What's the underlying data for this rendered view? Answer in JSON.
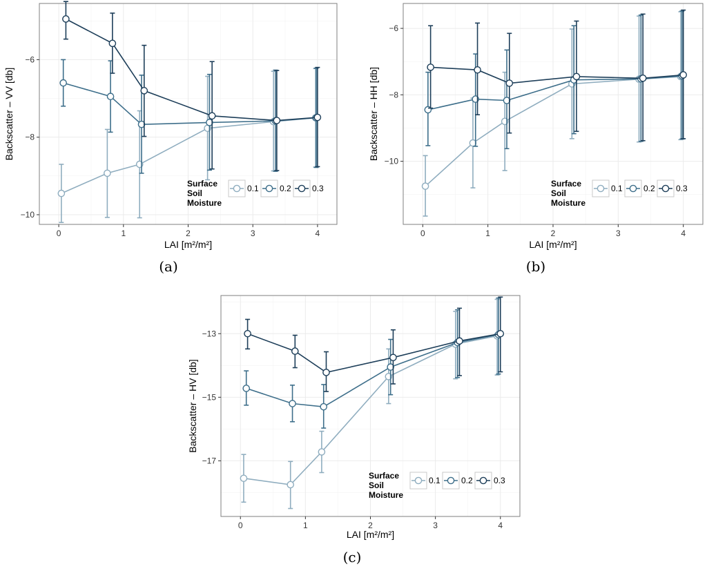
{
  "colors": {
    "sm_0_1": "#8fadbf",
    "sm_0_2": "#3d6e8a",
    "sm_0_3": "#1d3e59",
    "panel_bg": "#ffffff",
    "grid": "#ebebeb",
    "frame": "#7f7f7f"
  },
  "chart_data": [
    {
      "type": "line",
      "panel_label": "(a)",
      "xlabel": "LAI [m²/m²]",
      "ylabel": "Backscatter – VV [db]",
      "xlim": [
        -0.3,
        4.3
      ],
      "ylim": [
        -10.25,
        -4.55
      ],
      "x_ticks": [
        0,
        1,
        2,
        3,
        4
      ],
      "x_tick_labels": [
        "0",
        "1",
        "2",
        "3",
        "4"
      ],
      "y_ticks": [
        -10,
        -8,
        -6
      ],
      "y_tick_labels": [
        "−10",
        "−8",
        "−6"
      ],
      "grid": true,
      "legend": {
        "title": [
          "Surface",
          "Soil",
          "Moisture"
        ],
        "position": "bottom-right",
        "labels": [
          "0.1",
          "0.2",
          "0.3"
        ]
      },
      "series": [
        {
          "name": "0.1",
          "color_key": "sm_0_1",
          "x": [
            0.04,
            0.75,
            1.25,
            2.3,
            3.32,
            3.97
          ],
          "y": [
            -9.45,
            -8.93,
            -8.7,
            -7.77,
            -7.6,
            -7.5
          ],
          "lower": [
            -10.2,
            -10.07,
            -10.08,
            -9.1,
            -8.87,
            -8.77
          ],
          "upper": [
            -8.7,
            -7.8,
            -7.32,
            -6.43,
            -6.3,
            -6.23
          ]
        },
        {
          "name": "0.2",
          "color_key": "sm_0_2",
          "x": [
            0.07,
            0.8,
            1.28,
            2.33,
            3.35,
            3.98
          ],
          "y": [
            -6.6,
            -6.95,
            -7.67,
            -7.62,
            -7.58,
            -7.5
          ],
          "lower": [
            -7.2,
            -7.87,
            -8.93,
            -8.85,
            -8.88,
            -8.78
          ],
          "upper": [
            -6.0,
            -6.03,
            -6.4,
            -6.38,
            -6.27,
            -6.22
          ]
        },
        {
          "name": "0.3",
          "color_key": "sm_0_3",
          "x": [
            0.11,
            0.83,
            1.32,
            2.37,
            3.37,
            4.0
          ],
          "y": [
            -4.95,
            -5.58,
            -6.8,
            -7.45,
            -7.57,
            -7.49
          ],
          "lower": [
            -5.47,
            -6.35,
            -7.98,
            -8.82,
            -8.86,
            -8.76
          ],
          "upper": [
            -4.5,
            -4.8,
            -5.63,
            -6.05,
            -6.28,
            -6.2
          ]
        }
      ]
    },
    {
      "type": "line",
      "panel_label": "(b)",
      "xlabel": "LAI [m²/m²]",
      "ylabel": "Backscatter – HH [db]",
      "xlim": [
        -0.3,
        4.3
      ],
      "ylim": [
        -11.9,
        -5.25
      ],
      "x_ticks": [
        0,
        1,
        2,
        3,
        4
      ],
      "x_tick_labels": [
        "0",
        "1",
        "2",
        "3",
        "4"
      ],
      "y_ticks": [
        -10,
        -8,
        -6
      ],
      "y_tick_labels": [
        "−10",
        "−8",
        "−6"
      ],
      "grid": true,
      "legend": {
        "title": [
          "Surface",
          "Soil",
          "Moisture"
        ],
        "position": "bottom-right",
        "labels": [
          "0.1",
          "0.2",
          "0.3"
        ]
      },
      "series": [
        {
          "name": "0.1",
          "color_key": "sm_0_1",
          "x": [
            0.04,
            0.77,
            1.26,
            2.29,
            3.32,
            3.96
          ],
          "y": [
            -10.75,
            -9.45,
            -8.8,
            -7.67,
            -7.53,
            -7.45
          ],
          "lower": [
            -11.65,
            -10.8,
            -10.28,
            -9.32,
            -9.42,
            -9.35
          ],
          "upper": [
            -9.83,
            -8.1,
            -7.32,
            -6.02,
            -5.63,
            -5.5
          ]
        },
        {
          "name": "0.2",
          "color_key": "sm_0_2",
          "x": [
            0.08,
            0.81,
            1.29,
            2.32,
            3.35,
            3.98
          ],
          "y": [
            -8.45,
            -8.13,
            -8.17,
            -7.55,
            -7.52,
            -7.43
          ],
          "lower": [
            -9.53,
            -9.55,
            -9.62,
            -9.17,
            -9.4,
            -9.33
          ],
          "upper": [
            -7.32,
            -6.77,
            -6.65,
            -5.92,
            -5.6,
            -5.48
          ]
        },
        {
          "name": "0.3",
          "color_key": "sm_0_3",
          "x": [
            0.12,
            0.84,
            1.33,
            2.36,
            3.38,
            4.0
          ],
          "y": [
            -7.17,
            -7.25,
            -7.65,
            -7.45,
            -7.5,
            -7.4
          ],
          "lower": [
            -8.4,
            -8.6,
            -9.15,
            -9.1,
            -9.38,
            -9.32
          ],
          "upper": [
            -5.92,
            -5.84,
            -6.15,
            -5.78,
            -5.57,
            -5.45
          ]
        }
      ]
    },
    {
      "type": "line",
      "panel_label": "(c)",
      "xlabel": "LAI [m²/m²]",
      "ylabel": "Backscatter – HV [db]",
      "xlim": [
        -0.3,
        4.3
      ],
      "ylim": [
        -18.75,
        -11.8
      ],
      "x_ticks": [
        0,
        1,
        2,
        3,
        4
      ],
      "x_tick_labels": [
        "0",
        "1",
        "2",
        "3",
        "4"
      ],
      "y_ticks": [
        -17,
        -15,
        -13
      ],
      "y_tick_labels": [
        "−17",
        "−15",
        "−13"
      ],
      "grid": true,
      "legend": {
        "title": [
          "Surface",
          "Soil",
          "Moisture"
        ],
        "position": "bottom-right",
        "labels": [
          "0.1",
          "0.2",
          "0.3"
        ]
      },
      "series": [
        {
          "name": "0.1",
          "color_key": "sm_0_1",
          "x": [
            0.05,
            0.77,
            1.25,
            2.28,
            3.31,
            3.95
          ],
          "y": [
            -17.55,
            -17.75,
            -16.72,
            -14.35,
            -13.33,
            -13.07
          ],
          "lower": [
            -18.3,
            -18.5,
            -17.37,
            -15.2,
            -14.42,
            -14.3
          ],
          "upper": [
            -16.8,
            -17.02,
            -16.07,
            -13.48,
            -12.3,
            -11.92
          ]
        },
        {
          "name": "0.2",
          "color_key": "sm_0_2",
          "x": [
            0.09,
            0.8,
            1.28,
            2.31,
            3.34,
            3.97
          ],
          "y": [
            -14.72,
            -15.2,
            -15.3,
            -14.05,
            -13.28,
            -13.03
          ],
          "lower": [
            -15.25,
            -15.77,
            -15.97,
            -14.92,
            -14.38,
            -14.27
          ],
          "upper": [
            -14.17,
            -14.62,
            -14.6,
            -13.18,
            -12.25,
            -11.88
          ]
        },
        {
          "name": "0.3",
          "color_key": "sm_0_3",
          "x": [
            0.11,
            0.84,
            1.32,
            2.35,
            3.37,
            4.0
          ],
          "y": [
            -13.0,
            -13.55,
            -14.22,
            -13.75,
            -13.23,
            -13.0
          ],
          "lower": [
            -13.48,
            -14.07,
            -14.82,
            -14.58,
            -14.32,
            -14.2
          ],
          "upper": [
            -12.55,
            -13.05,
            -13.57,
            -12.88,
            -12.2,
            -11.85
          ]
        }
      ]
    }
  ]
}
